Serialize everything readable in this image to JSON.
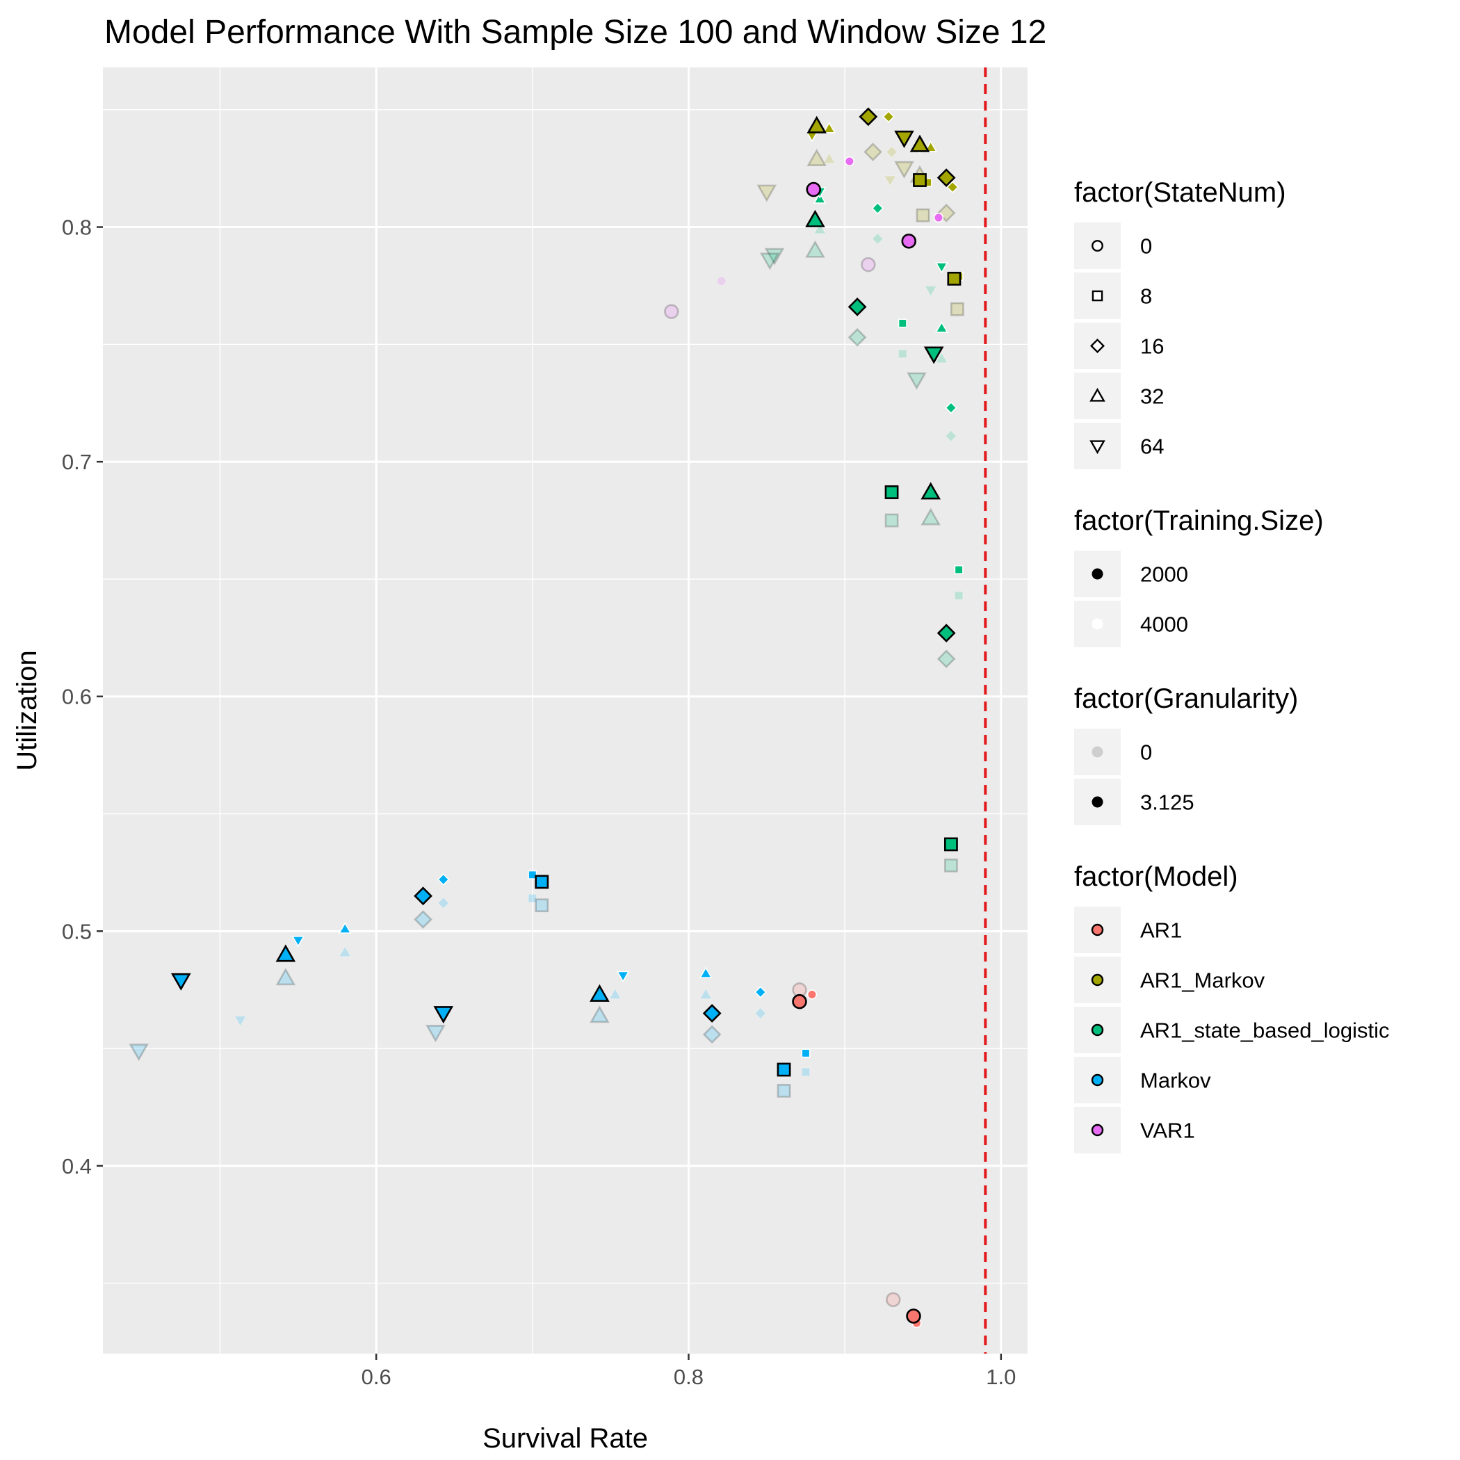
{
  "chart_data": {
    "type": "scatter",
    "title": "Model Performance With Sample Size 100 and Window Size 12",
    "xlabel": "Survival Rate",
    "ylabel": "Utilization",
    "xlim": [
      0.425,
      1.017
    ],
    "ylim": [
      0.32,
      0.868
    ],
    "x_ticks": [
      0.6,
      0.8,
      1.0
    ],
    "x_tick_labels": [
      "0.6",
      "0.8",
      "1.0"
    ],
    "y_ticks": [
      0.4,
      0.5,
      0.6,
      0.7,
      0.8
    ],
    "y_tick_labels": [
      "0.4",
      "0.5",
      "0.6",
      "0.7",
      "0.8"
    ],
    "grid": true,
    "reference_line": {
      "x": 0.99,
      "color": "#e31a1c",
      "style": "dashed"
    },
    "model_colors": {
      "AR1": "#F8766D",
      "AR1_Markov": "#A3A500",
      "AR1_state_based_logistic": "#00BF7D",
      "Markov": "#00B0F6",
      "VAR1": "#E76BF3"
    },
    "legends": [
      {
        "title": "factor(StateNum)",
        "kind": "shape",
        "items": [
          {
            "label": "0",
            "shape": "circle"
          },
          {
            "label": "8",
            "shape": "square"
          },
          {
            "label": "16",
            "shape": "diamond"
          },
          {
            "label": "32",
            "shape": "triangle-up"
          },
          {
            "label": "64",
            "shape": "triangle-down"
          }
        ]
      },
      {
        "title": "factor(Training.Size)",
        "kind": "size",
        "items": [
          {
            "label": "2000"
          },
          {
            "label": "4000"
          }
        ]
      },
      {
        "title": "factor(Granularity)",
        "kind": "alpha",
        "items": [
          {
            "label": "0"
          },
          {
            "label": "3.125"
          }
        ]
      },
      {
        "title": "factor(Model)",
        "kind": "color",
        "items": [
          {
            "label": "AR1"
          },
          {
            "label": "AR1_Markov"
          },
          {
            "label": "AR1_state_based_logistic"
          },
          {
            "label": "Markov"
          },
          {
            "label": "VAR1"
          }
        ]
      }
    ],
    "columns": [
      "survival_rate",
      "utilization",
      "model",
      "state_num",
      "training_size",
      "granularity"
    ],
    "points": [
      [
        0.871,
        0.47,
        "AR1",
        0,
        2000,
        3.125
      ],
      [
        0.879,
        0.473,
        "AR1",
        0,
        4000,
        3.125
      ],
      [
        0.871,
        0.475,
        "AR1",
        0,
        2000,
        0
      ],
      [
        0.944,
        0.336,
        "AR1",
        0,
        2000,
        3.125
      ],
      [
        0.946,
        0.333,
        "AR1",
        0,
        4000,
        3.125
      ],
      [
        0.931,
        0.343,
        "AR1",
        0,
        2000,
        0
      ],
      [
        0.88,
        0.816,
        "VAR1",
        0,
        2000,
        3.125
      ],
      [
        0.903,
        0.828,
        "VAR1",
        0,
        4000,
        3.125
      ],
      [
        0.941,
        0.794,
        "VAR1",
        0,
        2000,
        3.125
      ],
      [
        0.96,
        0.804,
        "VAR1",
        0,
        4000,
        3.125
      ],
      [
        0.789,
        0.764,
        "VAR1",
        0,
        2000,
        0
      ],
      [
        0.821,
        0.777,
        "VAR1",
        0,
        4000,
        0
      ],
      [
        0.915,
        0.784,
        "VAR1",
        0,
        2000,
        0
      ],
      [
        0.915,
        0.847,
        "AR1_Markov",
        16,
        2000,
        3.125
      ],
      [
        0.928,
        0.847,
        "AR1_Markov",
        16,
        4000,
        3.125
      ],
      [
        0.965,
        0.821,
        "AR1_Markov",
        16,
        2000,
        3.125
      ],
      [
        0.969,
        0.817,
        "AR1_Markov",
        16,
        4000,
        3.125
      ],
      [
        0.918,
        0.832,
        "AR1_Markov",
        16,
        2000,
        0
      ],
      [
        0.93,
        0.832,
        "AR1_Markov",
        16,
        4000,
        0
      ],
      [
        0.965,
        0.806,
        "AR1_Markov",
        16,
        2000,
        0
      ],
      [
        0.882,
        0.843,
        "AR1_Markov",
        32,
        2000,
        3.125
      ],
      [
        0.89,
        0.842,
        "AR1_Markov",
        32,
        4000,
        3.125
      ],
      [
        0.948,
        0.835,
        "AR1_Markov",
        32,
        2000,
        3.125
      ],
      [
        0.955,
        0.834,
        "AR1_Markov",
        32,
        4000,
        3.125
      ],
      [
        0.882,
        0.829,
        "AR1_Markov",
        32,
        2000,
        0
      ],
      [
        0.89,
        0.829,
        "AR1_Markov",
        32,
        4000,
        0
      ],
      [
        0.948,
        0.822,
        "AR1_Markov",
        32,
        2000,
        0
      ],
      [
        0.938,
        0.838,
        "AR1_Markov",
        64,
        2000,
        3.125
      ],
      [
        0.948,
        0.834,
        "AR1_Markov",
        64,
        4000,
        3.125
      ],
      [
        0.879,
        0.839,
        "AR1_Markov",
        64,
        4000,
        3.125
      ],
      [
        0.938,
        0.825,
        "AR1_Markov",
        64,
        2000,
        0
      ],
      [
        0.85,
        0.815,
        "AR1_Markov",
        64,
        2000,
        0
      ],
      [
        0.929,
        0.82,
        "AR1_Markov",
        64,
        4000,
        0
      ],
      [
        0.948,
        0.82,
        "AR1_Markov",
        8,
        2000,
        3.125
      ],
      [
        0.953,
        0.819,
        "AR1_Markov",
        8,
        4000,
        3.125
      ],
      [
        0.97,
        0.778,
        "AR1_Markov",
        8,
        2000,
        3.125
      ],
      [
        0.973,
        0.779,
        "AR1_Markov",
        8,
        4000,
        3.125
      ],
      [
        0.95,
        0.805,
        "AR1_Markov",
        8,
        2000,
        0
      ],
      [
        0.972,
        0.765,
        "AR1_Markov",
        8,
        2000,
        0
      ],
      [
        0.908,
        0.766,
        "AR1_state_based_logistic",
        16,
        2000,
        3.125
      ],
      [
        0.921,
        0.808,
        "AR1_state_based_logistic",
        16,
        4000,
        3.125
      ],
      [
        0.968,
        0.723,
        "AR1_state_based_logistic",
        16,
        4000,
        3.125
      ],
      [
        0.965,
        0.627,
        "AR1_state_based_logistic",
        16,
        2000,
        3.125
      ],
      [
        0.908,
        0.753,
        "AR1_state_based_logistic",
        16,
        2000,
        0
      ],
      [
        0.921,
        0.795,
        "AR1_state_based_logistic",
        16,
        4000,
        0
      ],
      [
        0.968,
        0.711,
        "AR1_state_based_logistic",
        16,
        4000,
        0
      ],
      [
        0.965,
        0.616,
        "AR1_state_based_logistic",
        16,
        2000,
        0
      ],
      [
        0.881,
        0.803,
        "AR1_state_based_logistic",
        32,
        2000,
        3.125
      ],
      [
        0.884,
        0.812,
        "AR1_state_based_logistic",
        32,
        4000,
        3.125
      ],
      [
        0.955,
        0.687,
        "AR1_state_based_logistic",
        32,
        2000,
        3.125
      ],
      [
        0.962,
        0.757,
        "AR1_state_based_logistic",
        32,
        4000,
        3.125
      ],
      [
        0.881,
        0.79,
        "AR1_state_based_logistic",
        32,
        2000,
        0
      ],
      [
        0.884,
        0.799,
        "AR1_state_based_logistic",
        32,
        4000,
        0
      ],
      [
        0.955,
        0.676,
        "AR1_state_based_logistic",
        32,
        2000,
        0
      ],
      [
        0.962,
        0.744,
        "AR1_state_based_logistic",
        32,
        4000,
        0
      ],
      [
        0.957,
        0.746,
        "AR1_state_based_logistic",
        64,
        2000,
        3.125
      ],
      [
        0.962,
        0.783,
        "AR1_state_based_logistic",
        64,
        4000,
        3.125
      ],
      [
        0.884,
        0.815,
        "AR1_state_based_logistic",
        64,
        4000,
        3.125
      ],
      [
        0.946,
        0.735,
        "AR1_state_based_logistic",
        64,
        2000,
        0
      ],
      [
        0.955,
        0.773,
        "AR1_state_based_logistic",
        64,
        4000,
        0
      ],
      [
        0.855,
        0.788,
        "AR1_state_based_logistic",
        64,
        2000,
        0
      ],
      [
        0.852,
        0.786,
        "AR1_state_based_logistic",
        64,
        2000,
        0
      ],
      [
        0.93,
        0.687,
        "AR1_state_based_logistic",
        8,
        2000,
        3.125
      ],
      [
        0.937,
        0.759,
        "AR1_state_based_logistic",
        8,
        4000,
        3.125
      ],
      [
        0.968,
        0.537,
        "AR1_state_based_logistic",
        8,
        2000,
        3.125
      ],
      [
        0.973,
        0.654,
        "AR1_state_based_logistic",
        8,
        4000,
        3.125
      ],
      [
        0.93,
        0.675,
        "AR1_state_based_logistic",
        8,
        2000,
        0
      ],
      [
        0.937,
        0.746,
        "AR1_state_based_logistic",
        8,
        4000,
        0
      ],
      [
        0.968,
        0.528,
        "AR1_state_based_logistic",
        8,
        2000,
        0
      ],
      [
        0.973,
        0.643,
        "AR1_state_based_logistic",
        8,
        4000,
        0
      ],
      [
        0.63,
        0.515,
        "Markov",
        16,
        2000,
        3.125
      ],
      [
        0.643,
        0.522,
        "Markov",
        16,
        4000,
        3.125
      ],
      [
        0.815,
        0.465,
        "Markov",
        16,
        2000,
        3.125
      ],
      [
        0.846,
        0.474,
        "Markov",
        16,
        4000,
        3.125
      ],
      [
        0.63,
        0.505,
        "Markov",
        16,
        2000,
        0
      ],
      [
        0.643,
        0.512,
        "Markov",
        16,
        4000,
        0
      ],
      [
        0.815,
        0.456,
        "Markov",
        16,
        2000,
        0
      ],
      [
        0.846,
        0.465,
        "Markov",
        16,
        4000,
        0
      ],
      [
        0.542,
        0.49,
        "Markov",
        32,
        2000,
        3.125
      ],
      [
        0.58,
        0.501,
        "Markov",
        32,
        4000,
        3.125
      ],
      [
        0.743,
        0.473,
        "Markov",
        32,
        2000,
        3.125
      ],
      [
        0.811,
        0.482,
        "Markov",
        32,
        4000,
        3.125
      ],
      [
        0.542,
        0.48,
        "Markov",
        32,
        2000,
        0
      ],
      [
        0.58,
        0.491,
        "Markov",
        32,
        4000,
        0
      ],
      [
        0.743,
        0.464,
        "Markov",
        32,
        2000,
        0
      ],
      [
        0.811,
        0.473,
        "Markov",
        32,
        4000,
        0
      ],
      [
        0.753,
        0.473,
        "Markov",
        32,
        4000,
        0
      ],
      [
        0.475,
        0.479,
        "Markov",
        64,
        2000,
        3.125
      ],
      [
        0.55,
        0.496,
        "Markov",
        64,
        4000,
        3.125
      ],
      [
        0.643,
        0.465,
        "Markov",
        64,
        2000,
        3.125
      ],
      [
        0.758,
        0.481,
        "Markov",
        64,
        4000,
        3.125
      ],
      [
        0.448,
        0.449,
        "Markov",
        64,
        2000,
        0
      ],
      [
        0.513,
        0.462,
        "Markov",
        64,
        4000,
        0
      ],
      [
        0.638,
        0.457,
        "Markov",
        64,
        2000,
        0
      ],
      [
        0.7,
        0.524,
        "Markov",
        8,
        4000,
        3.125
      ],
      [
        0.706,
        0.521,
        "Markov",
        8,
        2000,
        3.125
      ],
      [
        0.861,
        0.441,
        "Markov",
        8,
        2000,
        3.125
      ],
      [
        0.875,
        0.448,
        "Markov",
        8,
        4000,
        3.125
      ],
      [
        0.7,
        0.514,
        "Markov",
        8,
        4000,
        0
      ],
      [
        0.706,
        0.511,
        "Markov",
        8,
        2000,
        0
      ],
      [
        0.861,
        0.432,
        "Markov",
        8,
        2000,
        0
      ],
      [
        0.875,
        0.44,
        "Markov",
        8,
        4000,
        0
      ]
    ]
  }
}
